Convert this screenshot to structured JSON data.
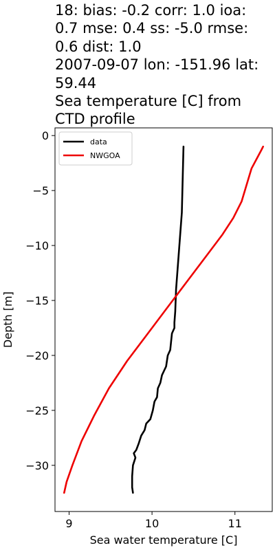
{
  "chart_data": {
    "type": "line",
    "title": "18: bias: -0.2  corr: 1.0  ioa: 0.7  mse: 0.4  ss: -5.0  rmse: 0.6  dist: 1.0\n2007-09-07 lon: -151.96 lat: 59.44\nSea temperature [C] from CTD profile",
    "xlabel": "Sea water temperature [C]",
    "ylabel": "Depth [m]",
    "xlim": [
      8.83,
      11.45
    ],
    "ylim": [
      -34.2,
      0.7
    ],
    "xticks": [
      9,
      10,
      11
    ],
    "yticks": [
      0,
      -5,
      -10,
      -15,
      -20,
      -25,
      -30
    ],
    "legend_position": "top-left",
    "grid": false,
    "series": [
      {
        "name": "data",
        "color": "#000000",
        "points": [
          [
            10.38,
            -1.0
          ],
          [
            10.37,
            -4.0
          ],
          [
            10.36,
            -7.0
          ],
          [
            10.34,
            -9.0
          ],
          [
            10.32,
            -11.0
          ],
          [
            10.29,
            -14.0
          ],
          [
            10.28,
            -16.0
          ],
          [
            10.27,
            -17.0
          ],
          [
            10.27,
            -17.5
          ],
          [
            10.24,
            -18.0
          ],
          [
            10.22,
            -19.5
          ],
          [
            10.19,
            -20.0
          ],
          [
            10.17,
            -21.0
          ],
          [
            10.12,
            -21.8
          ],
          [
            10.1,
            -22.5
          ],
          [
            10.07,
            -23.0
          ],
          [
            10.06,
            -23.8
          ],
          [
            10.03,
            -24.2
          ],
          [
            10.01,
            -25.0
          ],
          [
            9.98,
            -25.8
          ],
          [
            9.93,
            -26.2
          ],
          [
            9.91,
            -26.8
          ],
          [
            9.87,
            -27.3
          ],
          [
            9.84,
            -28.0
          ],
          [
            9.81,
            -28.6
          ],
          [
            9.78,
            -28.9
          ],
          [
            9.8,
            -29.3
          ],
          [
            9.77,
            -30.0
          ],
          [
            9.76,
            -31.0
          ],
          [
            9.76,
            -32.0
          ],
          [
            9.77,
            -32.5
          ]
        ]
      },
      {
        "name": "NWGOA",
        "color": "#ee0000",
        "points": [
          [
            11.34,
            -1.0
          ],
          [
            11.32,
            -1.3
          ],
          [
            11.27,
            -2.0
          ],
          [
            11.2,
            -3.0
          ],
          [
            11.14,
            -4.5
          ],
          [
            11.08,
            -6.0
          ],
          [
            10.98,
            -7.5
          ],
          [
            10.85,
            -9.0
          ],
          [
            10.65,
            -11.0
          ],
          [
            10.45,
            -13.0
          ],
          [
            10.2,
            -15.5
          ],
          [
            9.95,
            -18.0
          ],
          [
            9.7,
            -20.5
          ],
          [
            9.48,
            -23.0
          ],
          [
            9.3,
            -25.5
          ],
          [
            9.15,
            -27.8
          ],
          [
            9.04,
            -30.0
          ],
          [
            8.97,
            -31.5
          ],
          [
            8.94,
            -32.5
          ]
        ]
      }
    ]
  }
}
